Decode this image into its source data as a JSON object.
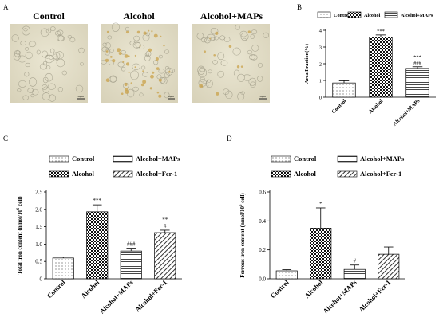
{
  "panels": {
    "A": {
      "letter": "A",
      "images": [
        {
          "label": "Control",
          "scale_text": "50μm"
        },
        {
          "label": "Alcohol",
          "scale_text": "50μm"
        },
        {
          "label": "Alcohol+MAPs",
          "scale_text": "50μm"
        }
      ]
    }
  },
  "chart_data": [
    {
      "panel": "B",
      "type": "bar",
      "categories": [
        "Control",
        "Alcohol",
        "Alcohol+MAPs"
      ],
      "values": [
        0.85,
        3.6,
        1.72
      ],
      "errors": [
        0.13,
        0.12,
        0.1
      ],
      "annotations": [
        "",
        "***",
        "***\n###"
      ],
      "ylabel": "Area Fraction(%)",
      "ylim": [
        0,
        4
      ],
      "yticks": [
        "0",
        "1",
        "2",
        "3",
        "4"
      ],
      "legend": [
        "Control",
        "Alcohol",
        "Alcohol+MAPs"
      ],
      "legend_placement": "top",
      "patterns": [
        "dots",
        "checker",
        "hlines"
      ]
    },
    {
      "panel": "C",
      "type": "bar",
      "categories": [
        "Control",
        "Alcohol",
        "Alcohol+MAPs",
        "Alcohol+Fer-1"
      ],
      "values": [
        0.6,
        1.93,
        0.8,
        1.33
      ],
      "errors": [
        0.03,
        0.2,
        0.08,
        0.07
      ],
      "annotations": [
        "",
        "***",
        "###",
        "**\n#"
      ],
      "ylabel_main": "Total iron content (nmol/10",
      "ylabel_sup": "6",
      "ylabel_end": " cell)",
      "ylim": [
        0,
        2.5
      ],
      "yticks": [
        "0",
        "0.5",
        "1.0",
        "1.5",
        "2.0",
        "2.5"
      ],
      "legend": [
        "Control",
        "Alcohol+MAPs",
        "Alcohol",
        "Alcohol+Fer-1"
      ],
      "legend_placement": "top",
      "patterns": [
        "dots",
        "checker",
        "hlines",
        "diag"
      ]
    },
    {
      "panel": "D",
      "type": "bar",
      "categories": [
        "Control",
        "Alcohol",
        "Alcohol+MAPs",
        "Alcohol+Fer-1"
      ],
      "values": [
        0.055,
        0.35,
        0.065,
        0.17
      ],
      "errors": [
        0.008,
        0.14,
        0.03,
        0.05
      ],
      "annotations": [
        "",
        "*",
        "#",
        ""
      ],
      "ylabel_main": "Ferrous iron content (nmol/10",
      "ylabel_sup": "6",
      "ylabel_end": " cell)",
      "ylim": [
        0,
        0.6
      ],
      "yticks": [
        "0.0",
        "0.2",
        "0.4",
        "0.6"
      ],
      "legend": [
        "Control",
        "Alcohol+MAPs",
        "Alcohol",
        "Alcohol+Fer-1"
      ],
      "legend_placement": "top",
      "patterns": [
        "dots",
        "checker",
        "hlines",
        "diag"
      ]
    }
  ]
}
